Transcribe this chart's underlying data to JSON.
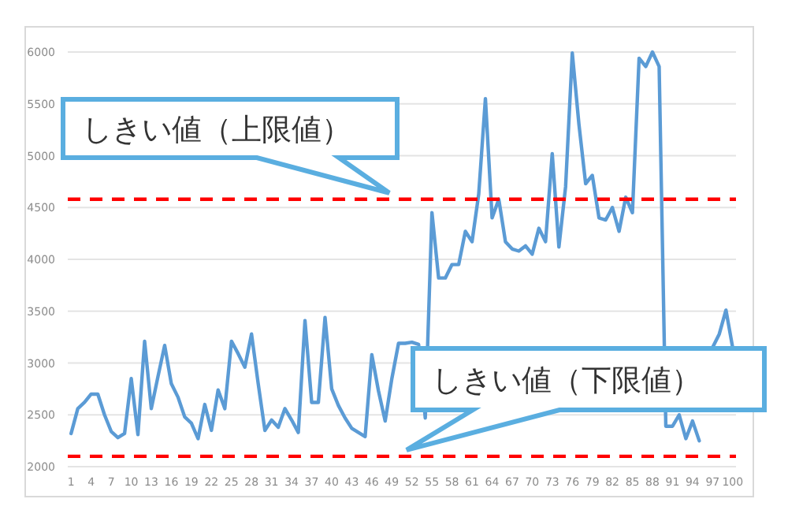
{
  "chart_data": {
    "type": "line",
    "categories": [
      "1",
      null,
      null,
      "4",
      null,
      null,
      "7",
      null,
      null,
      "10",
      null,
      null,
      "13",
      null,
      null,
      "16",
      null,
      null,
      "19",
      null,
      null,
      "22",
      null,
      null,
      "25",
      null,
      null,
      "28",
      null,
      null,
      "31",
      null,
      null,
      "34",
      null,
      null,
      "37",
      null,
      null,
      "40",
      null,
      null,
      "43",
      null,
      null,
      "46",
      null,
      null,
      "49",
      null,
      null,
      "52",
      null,
      null,
      "55",
      null,
      null,
      "58",
      null,
      null,
      "61",
      null,
      null,
      "64",
      null,
      null,
      "67",
      null,
      null,
      "70",
      null,
      null,
      "73",
      null,
      null,
      "76",
      null,
      null,
      "79",
      null,
      null,
      "82",
      null,
      null,
      "85",
      null,
      null,
      "88",
      null,
      null,
      "91",
      null,
      null,
      "94",
      null,
      null,
      "97",
      null,
      null,
      "100"
    ],
    "series": [
      {
        "color": "#5b9bd5",
        "values": [
          2320,
          2560,
          2620,
          2700,
          2700,
          2500,
          2340,
          2280,
          2320,
          2850,
          2310,
          3210,
          2560,
          2870,
          3170,
          2800,
          2670,
          2480,
          2420,
          2270,
          2600,
          2350,
          2740,
          2560,
          3210,
          3090,
          2960,
          3280,
          2800,
          2350,
          2450,
          2380,
          2560,
          2450,
          2330,
          3410,
          2620,
          2620,
          3440,
          2750,
          2590,
          2470,
          2370,
          2330,
          2290,
          3080,
          2730,
          2440,
          2850,
          3190,
          3190,
          3200,
          3180,
          2470,
          4450,
          3820,
          3820,
          3950,
          3950,
          4270,
          4170,
          4630,
          5550,
          4400,
          4580,
          4170,
          4100,
          4080,
          4130,
          4050,
          4300,
          4170,
          5020,
          4120,
          4700,
          5990,
          5300,
          4730,
          4810,
          4400,
          4380,
          4500,
          4270,
          4600,
          4450,
          5940,
          5860,
          6000,
          5860,
          2390,
          2390,
          2500,
          2270,
          2440,
          2250,
          null,
          3150,
          3280,
          3510,
          3150
        ]
      }
    ],
    "ylim": [
      2000,
      6000
    ],
    "yticks": [
      2000,
      2500,
      3000,
      3500,
      4000,
      4500,
      5000,
      5500,
      6000
    ],
    "grid": "y",
    "ref_lines": [
      {
        "axis": "y",
        "value": 4580,
        "label": "しきい値（上限値）",
        "color": "#ff0000",
        "line_style": "dashed"
      },
      {
        "axis": "y",
        "value": 2100,
        "label": "しきい値（下限値）",
        "color": "#ff0000",
        "line_style": "dashed"
      }
    ]
  }
}
